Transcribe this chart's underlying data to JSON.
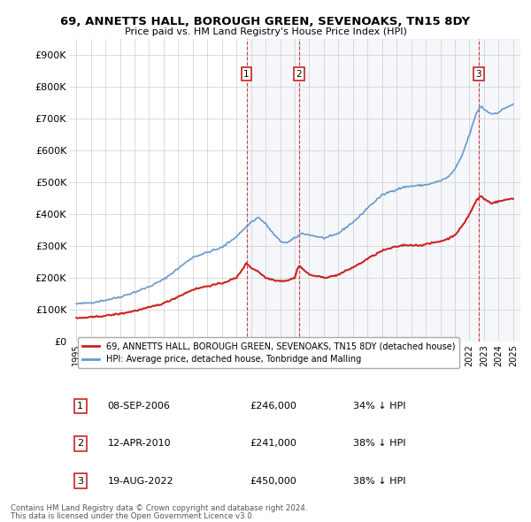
{
  "title": "69, ANNETTS HALL, BOROUGH GREEN, SEVENOAKS, TN15 8DY",
  "subtitle": "Price paid vs. HM Land Registry's House Price Index (HPI)",
  "background_color": "#ffffff",
  "plot_bg_color": "#ffffff",
  "grid_color": "#cccccc",
  "hpi_color": "#6699cc",
  "price_color": "#cc2222",
  "vline_color": "#cc2222",
  "shade_color": "#c8d8ee",
  "transactions": [
    {
      "date_num": 2006.69,
      "price": 246000,
      "label": "1",
      "date_str": "08-SEP-2006",
      "pct": "34% ↓ HPI"
    },
    {
      "date_num": 2010.28,
      "price": 241000,
      "label": "2",
      "date_str": "12-APR-2010",
      "pct": "38% ↓ HPI"
    },
    {
      "date_num": 2022.63,
      "price": 450000,
      "label": "3",
      "date_str": "19-AUG-2022",
      "pct": "38% ↓ HPI"
    }
  ],
  "legend_property": "69, ANNETTS HALL, BOROUGH GREEN, SEVENOAKS, TN15 8DY (detached house)",
  "legend_hpi": "HPI: Average price, detached house, Tonbridge and Malling",
  "footnote1": "Contains HM Land Registry data © Crown copyright and database right 2024.",
  "footnote2": "This data is licensed under the Open Government Licence v3.0.",
  "xlim": [
    1994.5,
    2025.5
  ],
  "ylim": [
    0,
    950000
  ],
  "yticks": [
    0,
    100000,
    200000,
    300000,
    400000,
    500000,
    600000,
    700000,
    800000,
    900000
  ],
  "ytick_labels": [
    "£0",
    "£100K",
    "£200K",
    "£300K",
    "£400K",
    "£500K",
    "£600K",
    "£700K",
    "£800K",
    "£900K"
  ],
  "xticks": [
    1995,
    1996,
    1997,
    1998,
    1999,
    2000,
    2001,
    2002,
    2003,
    2004,
    2005,
    2006,
    2007,
    2008,
    2009,
    2010,
    2011,
    2012,
    2013,
    2014,
    2015,
    2016,
    2017,
    2018,
    2019,
    2020,
    2021,
    2022,
    2023,
    2024,
    2025
  ]
}
